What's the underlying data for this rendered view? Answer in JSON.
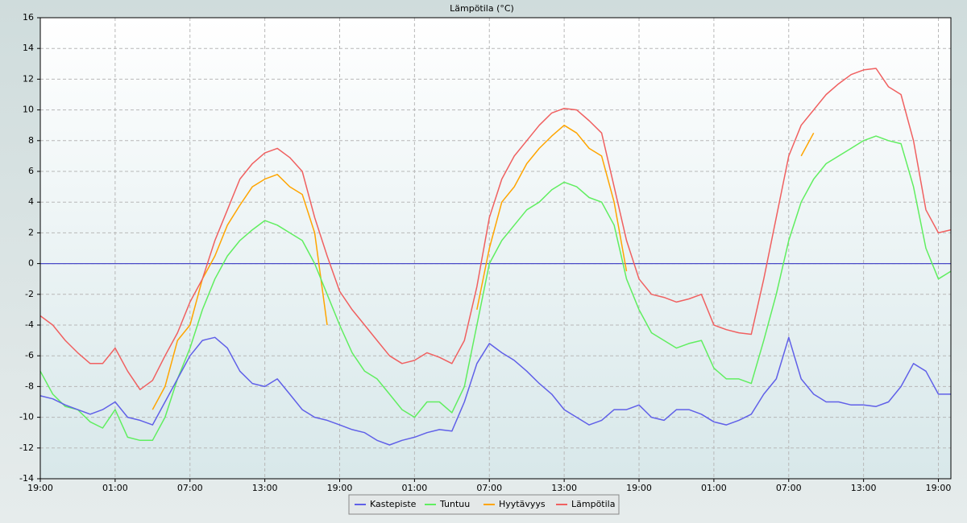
{
  "chart_data": {
    "type": "line",
    "title": "Lämpötila (°C)",
    "x": [
      0,
      1,
      2,
      3,
      4,
      5,
      6,
      7,
      8,
      9,
      10,
      11,
      12,
      13,
      14,
      15,
      16,
      17,
      18,
      19,
      20,
      21,
      22,
      23,
      24,
      25,
      26,
      27,
      28,
      29,
      30,
      31,
      32,
      33,
      34,
      35,
      36,
      37,
      38,
      39,
      40,
      41,
      42,
      43,
      44,
      45,
      46,
      47,
      48,
      49,
      50,
      51,
      52,
      53,
      54,
      55,
      56,
      57,
      58,
      59,
      60,
      61,
      62,
      63,
      64,
      65,
      66,
      67,
      68,
      69,
      70,
      71,
      72,
      73
    ],
    "xlim": [
      0,
      73
    ],
    "xticks": [
      {
        "value": 0,
        "label": "19:00"
      },
      {
        "value": 6,
        "label": "01:00"
      },
      {
        "value": 12,
        "label": "07:00"
      },
      {
        "value": 18,
        "label": "13:00"
      },
      {
        "value": 24,
        "label": "19:00"
      },
      {
        "value": 30,
        "label": "01:00"
      },
      {
        "value": 36,
        "label": "07:00"
      },
      {
        "value": 42,
        "label": "13:00"
      },
      {
        "value": 48,
        "label": "19:00"
      },
      {
        "value": 54,
        "label": "01:00"
      },
      {
        "value": 60,
        "label": "07:00"
      },
      {
        "value": 66,
        "label": "13:00"
      },
      {
        "value": 72,
        "label": "19:00"
      }
    ],
    "ylim": [
      -14,
      16
    ],
    "yticks": [
      -14,
      -12,
      -10,
      -8,
      -6,
      -4,
      -2,
      0,
      2,
      4,
      6,
      8,
      10,
      12,
      14,
      16
    ],
    "grid": true,
    "legend": "bottom",
    "series": [
      {
        "name": "Kastepiste",
        "color": "#6060e8",
        "values": [
          -8.6,
          -8.8,
          -9.2,
          -9.5,
          -9.8,
          -9.5,
          -9,
          -10,
          -10.2,
          -10.5,
          -9,
          -7.5,
          -6,
          -5,
          -4.8,
          -5.5,
          -7,
          -7.8,
          -8,
          -7.5,
          -8.5,
          -9.5,
          -10,
          -10.2,
          -10.5,
          -10.8,
          -11,
          -11.5,
          -11.8,
          -11.5,
          -11.3,
          -11,
          -10.8,
          -10.9,
          -9,
          -6.5,
          -5.2,
          -5.8,
          -6.3,
          -7,
          -7.8,
          -8.5,
          -9.5,
          -10,
          -10.5,
          -10.2,
          -9.5,
          -9.5,
          -9.2,
          -10,
          -10.2,
          -9.5,
          -9.5,
          -9.8,
          -10.3,
          -10.5,
          -10.2,
          -9.8,
          -8.5,
          -7.5,
          -4.8,
          -7.5,
          -8.5,
          -9,
          -9,
          -9.2,
          -9.2,
          -9.3,
          -9,
          -8,
          -6.5,
          -7,
          -8.5,
          -8.5
        ]
      },
      {
        "name": "Tuntuu",
        "color": "#60ee60",
        "values": [
          -7,
          -8.5,
          -9.3,
          -9.5,
          -10.3,
          -10.7,
          -9.5,
          -11.3,
          -11.5,
          -11.5,
          -10,
          -7.5,
          -5.5,
          -3,
          -1,
          0.5,
          1.5,
          2.2,
          2.8,
          2.5,
          2,
          1.5,
          0,
          -2,
          -4,
          -5.8,
          -7,
          -7.5,
          -8.5,
          -9.5,
          -10,
          -9,
          -9,
          -9.7,
          -8,
          -4,
          0,
          1.5,
          2.5,
          3.5,
          4,
          4.8,
          5.3,
          5,
          4.3,
          4,
          2.5,
          -1,
          -3,
          -4.5,
          -5,
          -5.5,
          -5.2,
          -5,
          -6.8,
          -7.5,
          -7.5,
          -7.8,
          -5,
          -2,
          1.5,
          4,
          5.5,
          6.5,
          7,
          7.5,
          8,
          8.3,
          8,
          7.8,
          5,
          1,
          -1,
          -0.5
        ]
      },
      {
        "name": "Hyytävyys",
        "color": "#ffa500",
        "values": [
          null,
          null,
          null,
          null,
          null,
          null,
          null,
          null,
          null,
          -9.5,
          -8,
          -5,
          -4,
          -1,
          0.5,
          2.5,
          3.8,
          5,
          5.5,
          5.8,
          5,
          4.5,
          2,
          -4,
          null,
          null,
          null,
          null,
          null,
          null,
          null,
          null,
          null,
          null,
          null,
          -3,
          1,
          4,
          5,
          6.5,
          7.5,
          8.3,
          9,
          8.5,
          7.5,
          7,
          4,
          -0.5,
          null,
          null,
          null,
          null,
          null,
          null,
          null,
          null,
          null,
          null,
          null,
          null,
          null,
          7,
          8.5,
          null,
          null,
          null,
          null,
          null,
          null,
          null,
          null,
          null,
          null,
          null
        ]
      },
      {
        "name": "Lämpötila",
        "color": "#f06060",
        "values": [
          -3.4,
          -4,
          -5,
          -5.8,
          -6.5,
          -6.5,
          -5.5,
          -7,
          -8.2,
          -7.6,
          -6,
          -4.5,
          -2.5,
          -1,
          1.5,
          3.5,
          5.5,
          6.5,
          7.2,
          7.5,
          6.9,
          6,
          3,
          0.5,
          -1.8,
          -3,
          -4,
          -5,
          -6,
          -6.5,
          -6.3,
          -5.8,
          -6.1,
          -6.5,
          -5,
          -1.5,
          3,
          5.5,
          7,
          8,
          9,
          9.8,
          10.1,
          10,
          9.3,
          8.5,
          5,
          1.5,
          -1,
          -2,
          -2.2,
          -2.5,
          -2.3,
          -2,
          -4,
          -4.3,
          -4.5,
          -4.6,
          -1,
          3,
          7,
          9,
          10,
          11,
          11.7,
          12.3,
          12.6,
          12.7,
          11.5,
          11,
          8,
          3.5,
          2,
          2.2
        ]
      }
    ]
  }
}
